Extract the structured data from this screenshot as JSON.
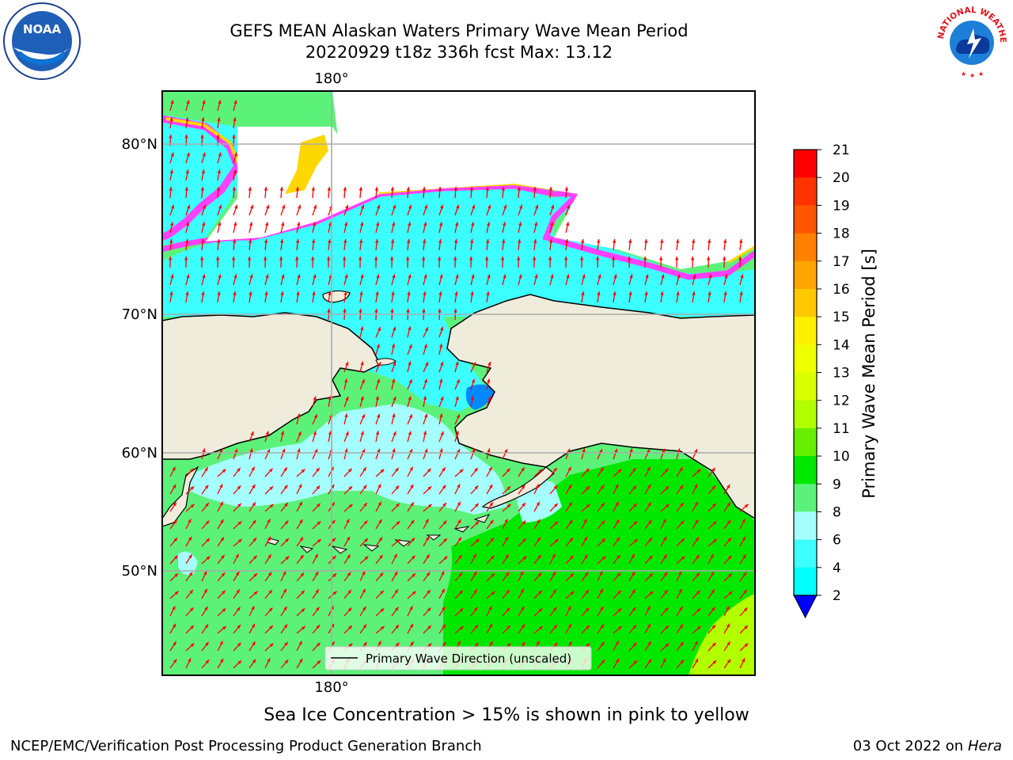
{
  "title": {
    "line1": "GEFS MEAN Alaskan Waters Primary Wave Mean Period",
    "line2": "20220929 t18z 336h fcst   Max: 13.12"
  },
  "map": {
    "lon_label_top": "180°",
    "lon_label_bottom": "180°",
    "lat_labels": [
      "80°N",
      "70°N",
      "60°N",
      "50°N"
    ],
    "legend_text": "Primary Wave Direction (unscaled)",
    "colors": {
      "ocean_main": "#5CF27A",
      "ocean_green": "#00E800",
      "ocean_light": "#A6FFFF",
      "ocean_cyan": "#3CFFFF",
      "land": "#EFECDC",
      "ice_pink": "#FF40FF",
      "ice_yellow": "#FFD700",
      "arrow": "#FF0000"
    }
  },
  "colorbar": {
    "label": "Primary Wave Mean Period [s]",
    "ticks": [
      "21",
      "20",
      "19",
      "18",
      "17",
      "16",
      "15",
      "14",
      "13",
      "12",
      "11",
      "10",
      "9",
      "8",
      "6",
      "4",
      "2"
    ],
    "colors": [
      "#FF0000",
      "#FF3300",
      "#FF5500",
      "#FF8000",
      "#FFA500",
      "#FFC800",
      "#FFF000",
      "#F0FF00",
      "#D8FF00",
      "#B2FF00",
      "#66F000",
      "#00E800",
      "#5CF27A",
      "#A6FFFF",
      "#3CFFFF",
      "#00FFFF",
      "#0088FF",
      "#0000FF"
    ]
  },
  "caption": "Sea Ice Concentration > 15% is shown in pink to yellow",
  "footer": {
    "left": "NCEP/EMC/Verification Post Processing Product Generation Branch",
    "right_date": "03 Oct 2022 on ",
    "right_host": "Hera"
  },
  "logos": {
    "noaa_text": "NOAA",
    "nws_text": "NATIONAL WEATHER SERVICE"
  }
}
